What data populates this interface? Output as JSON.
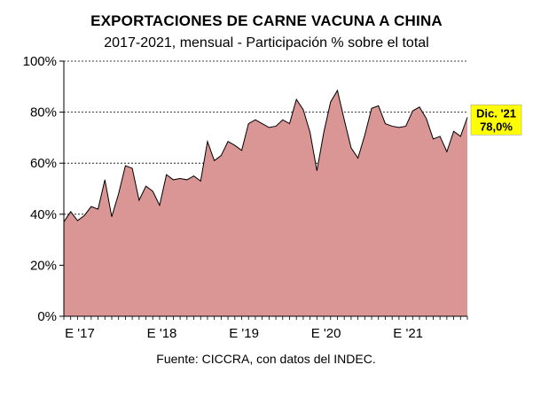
{
  "chart_data": {
    "type": "area",
    "title": "EXPORTACIONES DE CARNE VACUNA A CHINA",
    "subtitle": "2017-2021, mensual - Participación % sobre el total",
    "source": "Fuente: CICCRA, con datos del INDEC.",
    "x_start": "2017-01",
    "x_end": "2021-12",
    "ylim": [
      0,
      100
    ],
    "yticks": [
      0,
      20,
      40,
      60,
      80,
      100
    ],
    "ytick_labels": [
      "0%",
      "20%",
      "40%",
      "60%",
      "80%",
      "100%"
    ],
    "xticks": [
      {
        "label": "E '17",
        "date": "2017-01"
      },
      {
        "label": "E '18",
        "date": "2018-01"
      },
      {
        "label": "E '19",
        "date": "2019-01"
      },
      {
        "label": "E '20",
        "date": "2020-01"
      },
      {
        "label": "E '21",
        "date": "2021-01"
      }
    ],
    "grid": true,
    "fill_color": "#d99694",
    "line_color": "#000000",
    "annotation": {
      "date": "2021-12",
      "line1": "Dic. '21",
      "line2": "78,0%",
      "background": "#ffff00"
    },
    "values": [
      37,
      41,
      37.5,
      39.5,
      43,
      42,
      53.5,
      39,
      48,
      59,
      58,
      45.5,
      51,
      49,
      43.5,
      55.5,
      53.5,
      54,
      53.5,
      55,
      53,
      68.5,
      61,
      63,
      68.5,
      67,
      65,
      75.5,
      77,
      75.5,
      74,
      74.5,
      77,
      75.5,
      85,
      81,
      72,
      57,
      72,
      84,
      88.5,
      77,
      66,
      62,
      71,
      81.5,
      82.5,
      75.5,
      74.5,
      74,
      74.5,
      80.5,
      82,
      77.5,
      69.5,
      70.5,
      64.5,
      72.5,
      70.5,
      78
    ]
  }
}
